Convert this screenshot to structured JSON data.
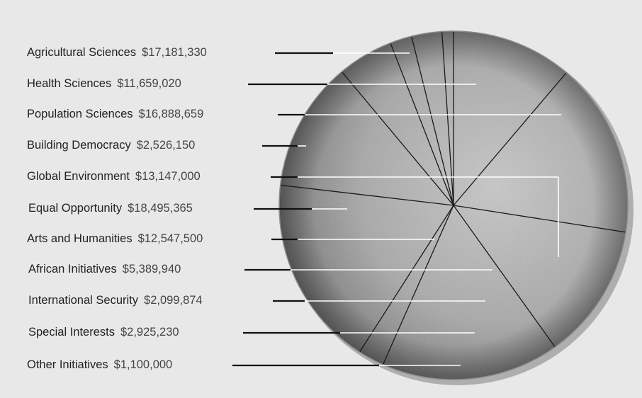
{
  "chart_data": {
    "type": "pie",
    "title": "",
    "categories": [
      "Agricultural Sciences",
      "Health Sciences",
      "Population Sciences",
      "Building Democracy",
      "Global Environment",
      "Equal Opportunity",
      "Arts and Humanities",
      "African Initiatives",
      "International Security",
      "Special Interests",
      "Other Initiatives"
    ],
    "value_labels": [
      "$17,181,330",
      "$11,659,020",
      "$16,888,659",
      "$2,526,150",
      "$13,147,000",
      "$18,495,365",
      "$12,547,500",
      "$5,389,940",
      "$2,099,874",
      "$2,925,230",
      "$1,100,000"
    ],
    "values": [
      17181330,
      11659020,
      16888659,
      2526150,
      13147000,
      18495365,
      12547500,
      5389940,
      2099874,
      2925230,
      1100000
    ],
    "slice_order": [
      1,
      2,
      4,
      0,
      3,
      5,
      6,
      7,
      8,
      9,
      10
    ],
    "legend_position": "left",
    "colors": {
      "background": "#e8e8e8",
      "pie_center": "#bdbdbd",
      "pie_edge": "#6b6b6b",
      "divider": "#1a1a1a",
      "leader_black": "#111111",
      "leader_white": "#ffffff"
    }
  }
}
